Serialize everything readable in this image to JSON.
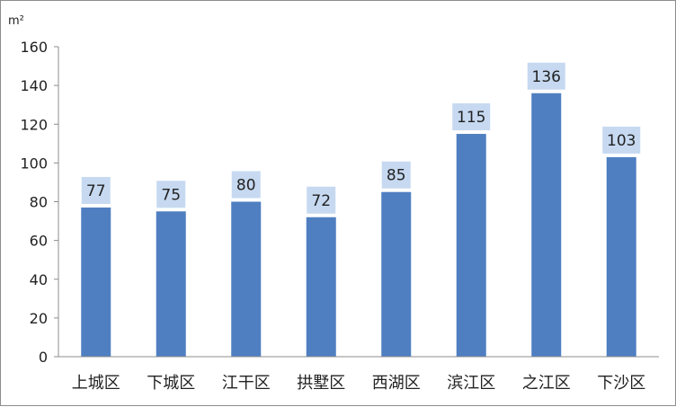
{
  "chart_data": {
    "type": "bar",
    "unit_label": "m²",
    "categories": [
      "上城区",
      "下城区",
      "江干区",
      "拱墅区",
      "西湖区",
      "滨江区",
      "之江区",
      "下沙区"
    ],
    "values": [
      77,
      75,
      80,
      72,
      85,
      115,
      136,
      103
    ],
    "data_labels": [
      "77",
      "75",
      "80",
      "72",
      "85",
      "115",
      "136",
      "103"
    ],
    "ylim": [
      0,
      160
    ],
    "yticks": [
      0,
      20,
      40,
      60,
      80,
      100,
      120,
      140,
      160
    ],
    "ytick_labels": [
      "0",
      "20",
      "40",
      "60",
      "80",
      "100",
      "120",
      "140",
      "160"
    ],
    "grid": false,
    "legend": "none",
    "colors": {
      "bar": "#4f7fc1",
      "label_bg": "#c6d9f1",
      "axis": "#8c8c8c"
    }
  }
}
